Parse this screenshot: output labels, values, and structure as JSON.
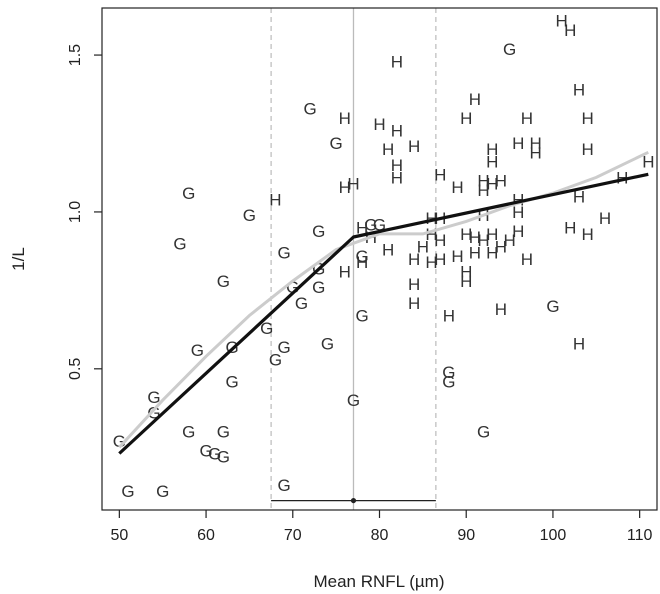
{
  "chart_data": {
    "type": "scatter",
    "xlabel": "Mean RNFL (µm)",
    "ylabel": "1/L",
    "xlim": [
      48,
      112
    ],
    "ylim": [
      0.05,
      1.65
    ],
    "x_ticks": [
      50,
      60,
      70,
      80,
      90,
      100,
      110
    ],
    "y_ticks": [
      0.5,
      1.0,
      1.5
    ],
    "x_tick_labels": [
      "50",
      "60",
      "70",
      "80",
      "90",
      "100",
      "110"
    ],
    "y_tick_labels": [
      "0.5",
      "1.0",
      "1.5"
    ],
    "grid": false,
    "colors": {
      "broken_stick": "#111111",
      "smooth_fit": "#cccccc",
      "breakpoint_line": "#bbbbbb",
      "ci_line": "#bbbbbb",
      "points": "#333333"
    },
    "series": [
      {
        "name": "G",
        "marker": "G",
        "points": [
          [
            50,
            0.27
          ],
          [
            51,
            0.11
          ],
          [
            54,
            0.41
          ],
          [
            54,
            0.36
          ],
          [
            55,
            0.11
          ],
          [
            57,
            0.9
          ],
          [
            58,
            1.06
          ],
          [
            58,
            0.3
          ],
          [
            59,
            0.56
          ],
          [
            60,
            0.24
          ],
          [
            61,
            0.23
          ],
          [
            62,
            0.3
          ],
          [
            62,
            0.22
          ],
          [
            62,
            0.78
          ],
          [
            63,
            0.57
          ],
          [
            63,
            0.46
          ],
          [
            65,
            0.99
          ],
          [
            67,
            0.63
          ],
          [
            68,
            0.53
          ],
          [
            69,
            0.87
          ],
          [
            69,
            0.57
          ],
          [
            69,
            0.13
          ],
          [
            70,
            0.76
          ],
          [
            71,
            0.71
          ],
          [
            72,
            1.33
          ],
          [
            73,
            0.82
          ],
          [
            73,
            0.76
          ],
          [
            73,
            0.94
          ],
          [
            74,
            0.58
          ],
          [
            75,
            1.22
          ],
          [
            77,
            0.4
          ],
          [
            78,
            0.67
          ],
          [
            78,
            0.86
          ],
          [
            79,
            0.96
          ],
          [
            80,
            0.96
          ],
          [
            88,
            0.49
          ],
          [
            88,
            0.46
          ],
          [
            92,
            0.3
          ],
          [
            95,
            1.52
          ],
          [
            100,
            0.7
          ]
        ]
      },
      {
        "name": "H",
        "marker": "H",
        "points": [
          [
            68,
            1.04
          ],
          [
            76,
            1.3
          ],
          [
            76,
            1.08
          ],
          [
            77,
            1.09
          ],
          [
            76,
            0.81
          ],
          [
            78,
            0.95
          ],
          [
            79,
            0.92
          ],
          [
            78,
            0.84
          ],
          [
            80,
            1.28
          ],
          [
            81,
            1.2
          ],
          [
            81,
            0.88
          ],
          [
            82,
            1.48
          ],
          [
            82,
            1.26
          ],
          [
            82,
            1.15
          ],
          [
            82,
            1.11
          ],
          [
            84,
            1.21
          ],
          [
            84,
            0.85
          ],
          [
            84,
            0.77
          ],
          [
            84,
            0.71
          ],
          [
            85,
            0.89
          ],
          [
            86,
            0.98
          ],
          [
            86,
            0.93
          ],
          [
            86,
            0.84
          ],
          [
            87,
            1.12
          ],
          [
            87,
            0.98
          ],
          [
            87,
            0.91
          ],
          [
            87,
            0.85
          ],
          [
            88,
            0.67
          ],
          [
            89,
            1.08
          ],
          [
            89,
            0.86
          ],
          [
            90,
            1.3
          ],
          [
            90,
            0.93
          ],
          [
            90,
            0.81
          ],
          [
            90,
            0.78
          ],
          [
            91,
            1.36
          ],
          [
            91,
            0.92
          ],
          [
            91,
            0.87
          ],
          [
            92,
            1.1
          ],
          [
            92,
            1.07
          ],
          [
            92,
            0.99
          ],
          [
            92,
            0.91
          ],
          [
            93,
            1.2
          ],
          [
            93,
            1.16
          ],
          [
            93,
            1.09
          ],
          [
            93,
            0.93
          ],
          [
            93,
            0.87
          ],
          [
            94,
            1.1
          ],
          [
            94,
            0.89
          ],
          [
            94,
            0.69
          ],
          [
            95,
            0.91
          ],
          [
            96,
            1.22
          ],
          [
            96,
            1.04
          ],
          [
            96,
            1.0
          ],
          [
            96,
            0.94
          ],
          [
            97,
            1.3
          ],
          [
            97,
            0.85
          ],
          [
            98,
            1.22
          ],
          [
            98,
            1.19
          ],
          [
            101,
            1.61
          ],
          [
            102,
            1.58
          ],
          [
            102,
            0.95
          ],
          [
            103,
            1.39
          ],
          [
            103,
            1.05
          ],
          [
            103,
            0.58
          ],
          [
            104,
            1.3
          ],
          [
            104,
            1.2
          ],
          [
            104,
            0.93
          ],
          [
            106,
            0.98
          ],
          [
            108,
            1.11
          ],
          [
            111,
            1.16
          ]
        ]
      }
    ],
    "broken_stick_fit": [
      [
        50,
        0.23
      ],
      [
        77,
        0.92
      ],
      [
        111,
        1.12
      ]
    ],
    "smooth_fit": [
      [
        50,
        0.25
      ],
      [
        55,
        0.4
      ],
      [
        60,
        0.54
      ],
      [
        65,
        0.67
      ],
      [
        70,
        0.78
      ],
      [
        75,
        0.88
      ],
      [
        80,
        0.93
      ],
      [
        85,
        0.93
      ],
      [
        90,
        0.97
      ],
      [
        95,
        1.02
      ],
      [
        100,
        1.06
      ],
      [
        105,
        1.11
      ],
      [
        111,
        1.19
      ]
    ],
    "breakpoint": 77,
    "breakpoint_ci": [
      67.5,
      86.5
    ],
    "ci_bar_y": 0.08
  }
}
